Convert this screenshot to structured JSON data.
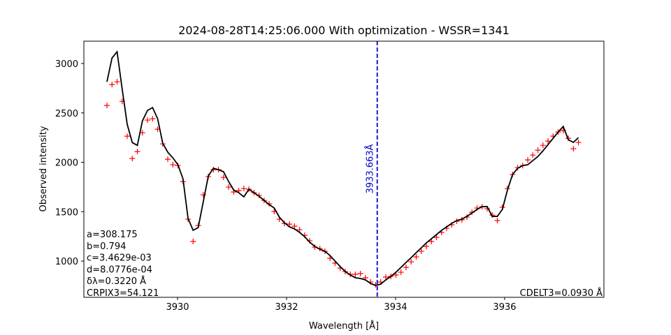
{
  "chart_data": {
    "type": "line",
    "title": "2024-08-28T14:25:06.000 With optimization - WSSR=1341",
    "xlabel": "Wavelength [Å]",
    "ylabel": "Observed intensity",
    "xlim": [
      3928.282,
      3937.821
    ],
    "ylim": [
      633,
      3226
    ],
    "xticks": [
      3930,
      3932,
      3934,
      3936
    ],
    "yticks": [
      1000,
      1500,
      2000,
      2500,
      3000
    ],
    "grid": false,
    "x": [
      3928.705,
      3928.798,
      3928.891,
      3928.984,
      3929.077,
      3929.17,
      3929.263,
      3929.356,
      3929.449,
      3929.542,
      3929.635,
      3929.728,
      3929.821,
      3929.914,
      3930.007,
      3930.1,
      3930.193,
      3930.286,
      3930.379,
      3930.472,
      3930.565,
      3930.658,
      3930.751,
      3930.844,
      3930.937,
      3931.03,
      3931.123,
      3931.216,
      3931.309,
      3931.402,
      3931.495,
      3931.588,
      3931.681,
      3931.774,
      3931.867,
      3931.96,
      3932.053,
      3932.146,
      3932.239,
      3932.332,
      3932.425,
      3932.518,
      3932.611,
      3932.704,
      3932.797,
      3932.89,
      3932.983,
      3933.076,
      3933.169,
      3933.262,
      3933.355,
      3933.448,
      3933.541,
      3933.634,
      3933.727,
      3933.82,
      3933.913,
      3934.006,
      3934.099,
      3934.192,
      3934.285,
      3934.378,
      3934.471,
      3934.564,
      3934.657,
      3934.75,
      3934.843,
      3934.936,
      3935.029,
      3935.122,
      3935.215,
      3935.308,
      3935.401,
      3935.494,
      3935.587,
      3935.68,
      3935.773,
      3935.866,
      3935.959,
      3936.052,
      3936.145,
      3936.238,
      3936.331,
      3936.424,
      3936.517,
      3936.61,
      3936.703,
      3936.796,
      3936.889,
      3936.982,
      3937.075,
      3937.168,
      3937.261,
      3937.354
    ],
    "series": [
      {
        "color": "#ff0000",
        "marker": "+",
        "values": [
          2575,
          2787,
          2815,
          2617,
          2264,
          2038,
          2109,
          2299,
          2427,
          2441,
          2335,
          2186,
          2031,
          1975,
          1967,
          1805,
          1424,
          1198,
          1360,
          1671,
          1855,
          1925,
          1925,
          1847,
          1749,
          1699,
          1713,
          1734,
          1727,
          1692,
          1664,
          1614,
          1579,
          1501,
          1424,
          1381,
          1374,
          1353,
          1318,
          1261,
          1205,
          1141,
          1127,
          1099,
          1028,
          979,
          929,
          894,
          866,
          866,
          873,
          831,
          788,
          760,
          788,
          838,
          845,
          859,
          887,
          936,
          993,
          1042,
          1099,
          1148,
          1198,
          1240,
          1290,
          1332,
          1367,
          1403,
          1417,
          1445,
          1494,
          1537,
          1551,
          1530,
          1466,
          1410,
          1544,
          1734,
          1876,
          1946,
          1967,
          2024,
          2073,
          2123,
          2172,
          2215,
          2264,
          2306,
          2321,
          2243,
          2137,
          2201
        ]
      },
      {
        "color": "#000000",
        "marker": "line",
        "values": [
          2815,
          3055,
          3119,
          2744,
          2384,
          2200,
          2171,
          2419,
          2525,
          2554,
          2441,
          2193,
          2102,
          2045,
          1975,
          1833,
          1431,
          1311,
          1339,
          1600,
          1862,
          1939,
          1925,
          1904,
          1805,
          1720,
          1692,
          1650,
          1727,
          1692,
          1657,
          1614,
          1572,
          1537,
          1445,
          1388,
          1346,
          1325,
          1290,
          1247,
          1191,
          1148,
          1120,
          1099,
          1056,
          1000,
          944,
          894,
          859,
          831,
          824,
          809,
          774,
          753,
          767,
          809,
          845,
          887,
          936,
          986,
          1035,
          1085,
          1134,
          1184,
          1226,
          1268,
          1311,
          1346,
          1381,
          1410,
          1424,
          1452,
          1487,
          1523,
          1551,
          1551,
          1452,
          1452,
          1523,
          1720,
          1876,
          1939,
          1967,
          1975,
          2017,
          2059,
          2116,
          2179,
          2243,
          2306,
          2363,
          2229,
          2201,
          2250
        ]
      }
    ],
    "vline": {
      "x": 3933.663,
      "label": "3933.663Å",
      "color": "#0000cc"
    },
    "annotations_left": [
      "a=308.175",
      "b=0.794",
      "c=3.4629e-03",
      "d=8.0776e-04",
      "δλ=0.3220 Å",
      "CRPIX3=54.121"
    ],
    "annotation_right": "CDELT3=0.0930 Å"
  }
}
